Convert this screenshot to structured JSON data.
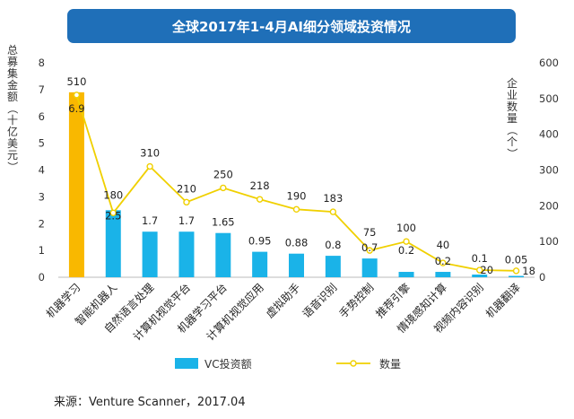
{
  "title": "全球2017年1-4月AI细分领域投资情况",
  "source": "来源：Venture Scanner，2017.04",
  "chart_data": {
    "type": "bar",
    "title": "全球2017年1-4月AI细分领域投资情况",
    "categories": [
      "机器学习",
      "智能机器人",
      "自然语言处理",
      "计算机视觉平台",
      "机器学习平台",
      "计算机视觉应用",
      "虚拟助手",
      "语音识别",
      "手势控制",
      "推荐引擎",
      "情境感知计算",
      "视频内容识别",
      "机器翻译"
    ],
    "series": [
      {
        "name": "VC投资额",
        "type": "bar",
        "axis": "left",
        "values": [
          6.9,
          2.5,
          1.7,
          1.7,
          1.65,
          0.95,
          0.88,
          0.8,
          0.7,
          0.2,
          0.2,
          0.1,
          0.05
        ],
        "labels": [
          "6.9",
          "2.5",
          "1.7",
          "1.7",
          "1.65",
          "0.95",
          "0.88",
          "0.8",
          "0.7",
          "0.2",
          "0.2",
          "0.1",
          "0.05"
        ]
      },
      {
        "name": "数量",
        "type": "line",
        "axis": "right",
        "values": [
          510,
          180,
          310,
          210,
          250,
          218,
          190,
          183,
          75,
          100,
          40,
          20,
          18
        ],
        "labels": [
          "510",
          "180",
          "310",
          "210",
          "250",
          "218",
          "190",
          "183",
          "75",
          "100",
          "40",
          "20",
          "18"
        ]
      }
    ],
    "ylabel_left": "总募集金额（十亿美元）",
    "ylabel_right": "企业数量（个）",
    "ylim_left": [
      0,
      8
    ],
    "yticks_left": [
      "0",
      "1",
      "2",
      "3",
      "4",
      "5",
      "6",
      "7",
      "8"
    ],
    "ylim_right": [
      0,
      600
    ],
    "yticks_right": [
      "0",
      "100",
      "200",
      "300",
      "400",
      "500",
      "600"
    ],
    "legend_position": "bottom",
    "grid": false,
    "colors": {
      "bar": "#1ab3e8",
      "bar_highlight": "#f9b800",
      "line": "#f0d000",
      "marker_fill": "#ffffff",
      "title_bg": "#1f6fb8"
    }
  }
}
